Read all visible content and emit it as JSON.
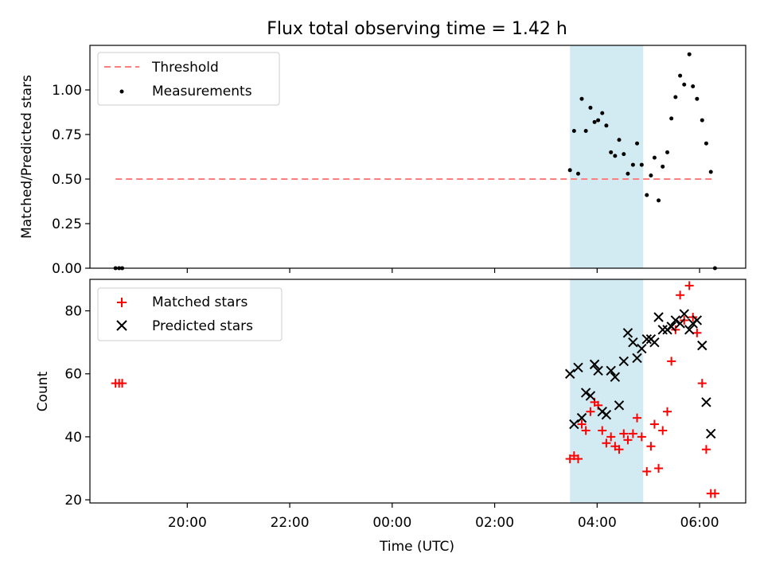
{
  "title": "Flux total observing time = 1.42 h",
  "colors": {
    "threshold": "#ff7f7f",
    "measurement": "#000000",
    "matched": "#ff0000",
    "predicted": "#000000",
    "shade": "#add8e6"
  },
  "x_tick_labels": [
    "20:00",
    "22:00",
    "00:00",
    "02:00",
    "04:00",
    "06:00"
  ],
  "chart_data": [
    {
      "type": "scatter",
      "ylabel": "Matched/Predicted stars",
      "xlabel": "",
      "x_units": "hours since 00:00 UTC (negative = previous evening)",
      "xlim": [
        -5.9,
        6.9
      ],
      "ylim": [
        0,
        1.25
      ],
      "y_ticks": [
        "0.00",
        "0.25",
        "0.50",
        "0.75",
        "1.00"
      ],
      "shaded_span": [
        3.47,
        4.9
      ],
      "legend": {
        "position": "upper left",
        "entries": [
          {
            "label": "Threshold",
            "marker": "dashed-line"
          },
          {
            "label": "Measurements",
            "marker": "dot"
          }
        ]
      },
      "threshold": {
        "name": "Threshold",
        "y": 0.5,
        "x_range": [
          -5.4,
          6.3
        ]
      },
      "series": [
        {
          "name": "Measurements",
          "points": [
            [
              -5.4,
              0.0
            ],
            [
              -5.33,
              0.0
            ],
            [
              -5.27,
              0.0
            ],
            [
              3.47,
              0.55
            ],
            [
              3.55,
              0.77
            ],
            [
              3.63,
              0.53
            ],
            [
              3.7,
              0.95
            ],
            [
              3.78,
              0.77
            ],
            [
              3.87,
              0.9
            ],
            [
              3.95,
              0.82
            ],
            [
              4.02,
              0.83
            ],
            [
              4.1,
              0.87
            ],
            [
              4.18,
              0.8
            ],
            [
              4.27,
              0.65
            ],
            [
              4.35,
              0.63
            ],
            [
              4.43,
              0.72
            ],
            [
              4.52,
              0.64
            ],
            [
              4.6,
              0.53
            ],
            [
              4.7,
              0.58
            ],
            [
              4.78,
              0.7
            ],
            [
              4.87,
              0.58
            ],
            [
              4.97,
              0.41
            ],
            [
              5.05,
              0.52
            ],
            [
              5.12,
              0.62
            ],
            [
              5.2,
              0.38
            ],
            [
              5.28,
              0.57
            ],
            [
              5.37,
              0.65
            ],
            [
              5.45,
              0.84
            ],
            [
              5.53,
              0.96
            ],
            [
              5.62,
              1.08
            ],
            [
              5.7,
              1.03
            ],
            [
              5.8,
              1.2
            ],
            [
              5.87,
              1.02
            ],
            [
              5.95,
              0.95
            ],
            [
              6.05,
              0.83
            ],
            [
              6.13,
              0.7
            ],
            [
              6.22,
              0.54
            ],
            [
              6.3,
              0.0
            ]
          ]
        }
      ]
    },
    {
      "type": "scatter",
      "ylabel": "Count",
      "xlabel": "Time (UTC)",
      "x_units": "hours since 00:00 UTC (negative = previous evening)",
      "xlim": [
        -5.9,
        6.9
      ],
      "ylim": [
        19,
        90
      ],
      "y_ticks": [
        "20",
        "40",
        "60",
        "80"
      ],
      "shaded_span": [
        3.47,
        4.9
      ],
      "legend": {
        "position": "upper left",
        "entries": [
          {
            "label": "Matched stars",
            "marker": "plus"
          },
          {
            "label": "Predicted stars",
            "marker": "x"
          }
        ]
      },
      "series": [
        {
          "name": "Matched stars",
          "points": [
            [
              -5.4,
              57
            ],
            [
              -5.33,
              57
            ],
            [
              -5.27,
              57
            ],
            [
              3.47,
              33
            ],
            [
              3.55,
              34
            ],
            [
              3.63,
              33
            ],
            [
              3.7,
              44
            ],
            [
              3.78,
              42
            ],
            [
              3.87,
              48
            ],
            [
              3.95,
              51
            ],
            [
              4.02,
              50
            ],
            [
              4.1,
              42
            ],
            [
              4.18,
              38
            ],
            [
              4.27,
              40
            ],
            [
              4.35,
              37
            ],
            [
              4.43,
              36
            ],
            [
              4.52,
              41
            ],
            [
              4.6,
              39
            ],
            [
              4.7,
              41
            ],
            [
              4.78,
              46
            ],
            [
              4.87,
              40
            ],
            [
              4.97,
              29
            ],
            [
              5.05,
              37
            ],
            [
              5.12,
              44
            ],
            [
              5.2,
              30
            ],
            [
              5.28,
              42
            ],
            [
              5.37,
              48
            ],
            [
              5.45,
              64
            ],
            [
              5.53,
              74
            ],
            [
              5.62,
              85
            ],
            [
              5.7,
              77
            ],
            [
              5.8,
              88
            ],
            [
              5.87,
              78
            ],
            [
              5.95,
              73
            ],
            [
              6.05,
              57
            ],
            [
              6.13,
              36
            ],
            [
              6.22,
              22
            ],
            [
              6.3,
              22
            ]
          ]
        },
        {
          "name": "Predicted stars",
          "points": [
            [
              3.47,
              60
            ],
            [
              3.55,
              44
            ],
            [
              3.63,
              62
            ],
            [
              3.7,
              46
            ],
            [
              3.78,
              54
            ],
            [
              3.87,
              53
            ],
            [
              3.95,
              63
            ],
            [
              4.02,
              61
            ],
            [
              4.1,
              48
            ],
            [
              4.18,
              47
            ],
            [
              4.27,
              61
            ],
            [
              4.35,
              59
            ],
            [
              4.43,
              50
            ],
            [
              4.52,
              64
            ],
            [
              4.6,
              73
            ],
            [
              4.7,
              70
            ],
            [
              4.78,
              65
            ],
            [
              4.87,
              68
            ],
            [
              4.97,
              71
            ],
            [
              5.05,
              71
            ],
            [
              5.12,
              70
            ],
            [
              5.2,
              78
            ],
            [
              5.28,
              74
            ],
            [
              5.37,
              74
            ],
            [
              5.45,
              75
            ],
            [
              5.53,
              77
            ],
            [
              5.62,
              76
            ],
            [
              5.7,
              79
            ],
            [
              5.8,
              74
            ],
            [
              5.87,
              76
            ],
            [
              5.95,
              77
            ],
            [
              6.05,
              69
            ],
            [
              6.13,
              51
            ],
            [
              6.22,
              41
            ]
          ]
        }
      ]
    }
  ]
}
